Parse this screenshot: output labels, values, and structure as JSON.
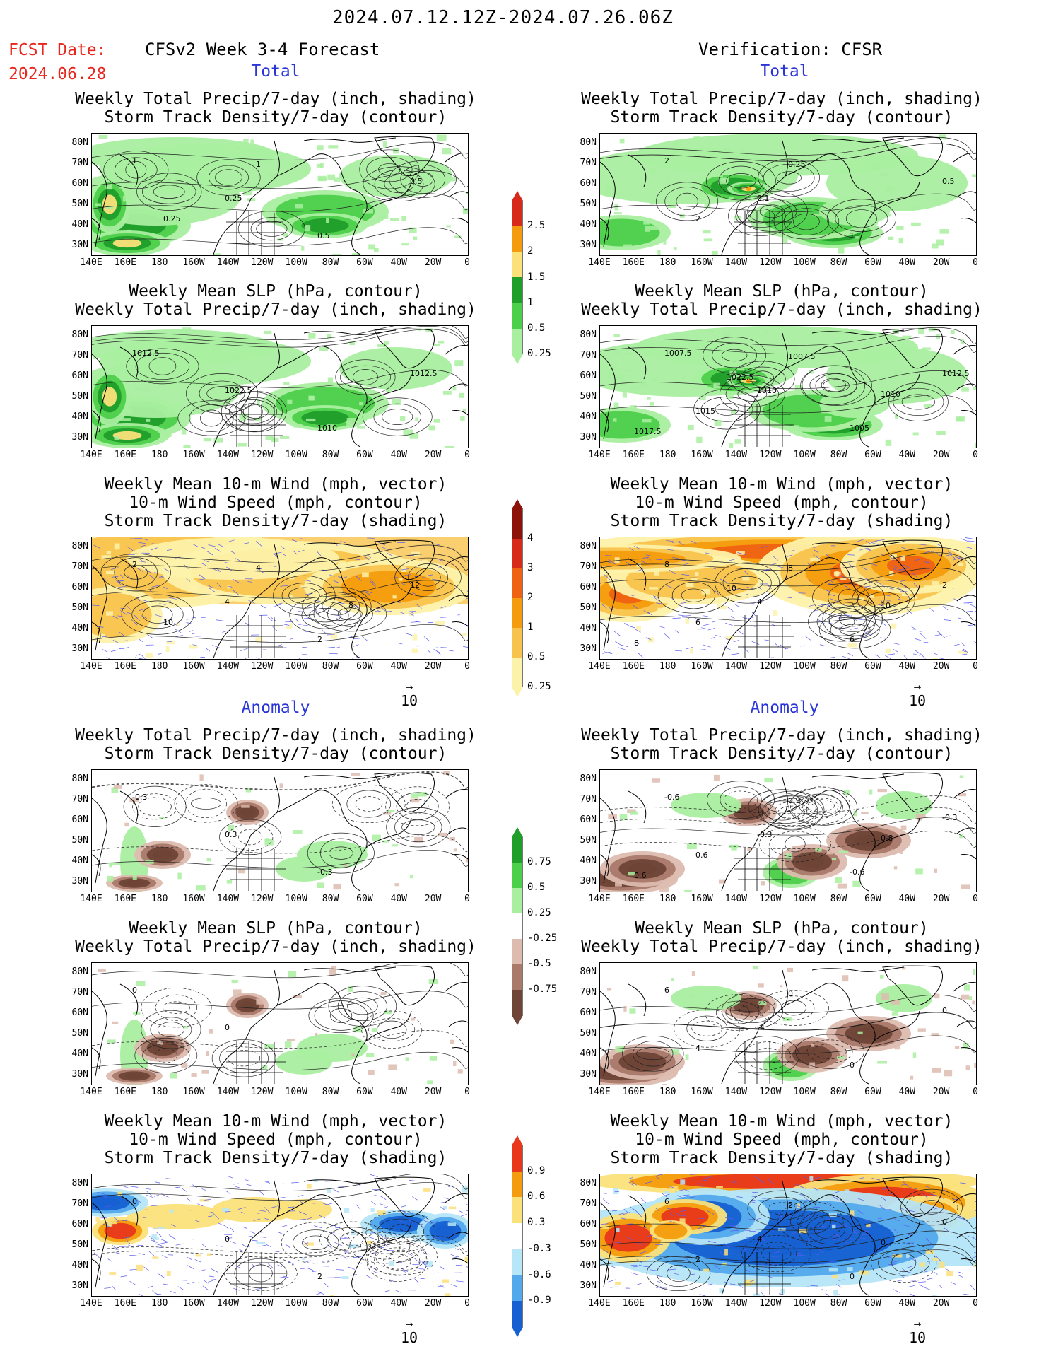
{
  "header": {
    "date_range": "2024.07.12.12Z-2024.07.26.06Z",
    "fcst_label": "FCST Date:",
    "fcst_date": "2024.06.28",
    "left_title": "CFSv2 Week 3-4 Forecast",
    "right_title": "Verification: CFSR"
  },
  "sections": {
    "total": "Total",
    "anomaly": "Anomaly"
  },
  "titles": {
    "precip_storm": [
      "Weekly Total Precip/7-day (inch, shading)",
      "Storm Track Density/7-day (contour)"
    ],
    "slp_precip": [
      "Weekly Mean SLP (hPa, contour)",
      "Weekly Total Precip/7-day (inch, shading)"
    ],
    "wind_storm": [
      "Weekly Mean 10-m Wind (mph, vector)",
      "10-m Wind Speed (mph, contour)",
      "Storm Track Density/7-day (shading)"
    ]
  },
  "axes": {
    "lat_labels": [
      "80N",
      "70N",
      "60N",
      "50N",
      "40N",
      "30N"
    ],
    "lon_labels": [
      "140E",
      "160E",
      "180",
      "160W",
      "140W",
      "120W",
      "100W",
      "80W",
      "60W",
      "40W",
      "20W",
      "0"
    ]
  },
  "vector_ref": {
    "value": "10",
    "arrow": "→"
  },
  "colorbars": {
    "total_precip": {
      "labels": [
        "2.5",
        "2",
        "1.5",
        "1",
        "0.5",
        "0.25"
      ],
      "colors": [
        "#d72a1b",
        "#f49c0d",
        "#fbe17a",
        "#1f9e2a",
        "#4ccf4a",
        "#a9efa0"
      ]
    },
    "total_storm": {
      "labels": [
        "4",
        "3",
        "2",
        "1",
        "0.5",
        "0.25"
      ],
      "colors": [
        "#8d1209",
        "#d72a1b",
        "#ef6212",
        "#f49c0d",
        "#f8c34c",
        "#fdf2aa"
      ]
    },
    "anom_precip": {
      "labels": [
        "0.75",
        "0.5",
        "0.25",
        "-0.25",
        "-0.5",
        "-0.75"
      ],
      "colors": [
        "#1f9e2a",
        "#4ccf4a",
        "#a9efa0",
        "#ffffff",
        "#ddbcaf",
        "#a9796a",
        "#6e4536"
      ]
    },
    "anom_storm": {
      "labels": [
        "0.9",
        "0.6",
        "0.3",
        "-0.3",
        "-0.6",
        "-0.9"
      ],
      "colors": [
        "#e8371a",
        "#f49c0d",
        "#fbe17a",
        "#ffffff",
        "#b6e6f7",
        "#52a9ec",
        "#1660d2"
      ]
    },
    "arrow_top": "▲",
    "arrow_bottom": "▼"
  },
  "contour_labels": {
    "p1l": [
      "1",
      "0.25",
      "0.5",
      "0.5",
      "0.25",
      "1"
    ],
    "p1r": [
      "2",
      "0.1",
      "1",
      "0.5",
      "2",
      "0.25"
    ],
    "p2l": [
      "1012.5",
      "1022.5",
      "1010",
      "1012.5"
    ],
    "p2r": [
      "1007.5",
      "1010",
      "1005",
      "1012.5",
      "1015",
      "1007.5",
      "1010",
      "1017.5",
      "1022.5"
    ],
    "p3l": [
      "2",
      "4",
      "2",
      "12",
      "10",
      "4",
      "8"
    ],
    "p3r": [
      "8",
      "4",
      "6",
      "2",
      "6",
      "8",
      "10",
      "8",
      "10"
    ],
    "p4l": [
      "-0.3",
      "0.3",
      "-0.3"
    ],
    "p4r": [
      "-0.6",
      "-0.3",
      "-0.6",
      "-0.3",
      "0.6",
      "0.9",
      "0.8",
      "0.6"
    ],
    "p5l": [
      "0",
      "0"
    ],
    "p5r": [
      "6",
      "-4",
      "0",
      "0",
      "4",
      "0"
    ],
    "p6l": [
      "0",
      "0",
      "2"
    ],
    "p6r": [
      "6",
      "4",
      "0",
      "0",
      "2",
      "2",
      "0"
    ]
  }
}
